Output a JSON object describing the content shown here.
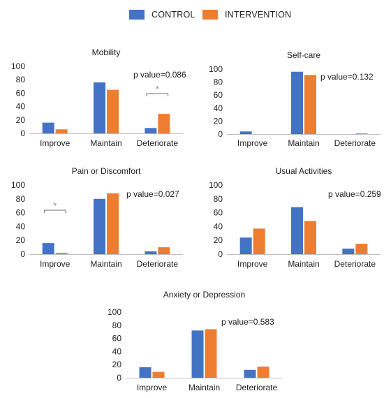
{
  "legend": {
    "control": {
      "label": "CONTROL",
      "color": "#4472C4"
    },
    "intervention": {
      "label": "INTERVENTION",
      "color": "#ED7D31"
    }
  },
  "chart_data": [
    {
      "type": "bar",
      "title": "Mobility",
      "categories": [
        "Improve",
        "Maintain",
        "Deteriorate"
      ],
      "series": [
        {
          "name": "CONTROL",
          "values": [
            16,
            76,
            8
          ]
        },
        {
          "name": "INTERVENTION",
          "values": [
            6,
            65,
            29
          ]
        }
      ],
      "ylim": [
        0,
        100
      ],
      "yticks": [
        0,
        20,
        40,
        60,
        80,
        100
      ],
      "annotation": "p value=0.086",
      "significance_marker": {
        "category_index": 2,
        "symbol": "*"
      }
    },
    {
      "type": "bar",
      "title": "Self-care",
      "categories": [
        "Improve",
        "Maintain",
        "Deteriorate"
      ],
      "series": [
        {
          "name": "CONTROL",
          "values": [
            4,
            96,
            0
          ]
        },
        {
          "name": "INTERVENTION",
          "values": [
            0,
            91,
            1
          ]
        }
      ],
      "ylim": [
        0,
        100
      ],
      "yticks": [
        0,
        20,
        40,
        60,
        80,
        100
      ],
      "annotation": "p value=0.132"
    },
    {
      "type": "bar",
      "title": "Pain or Discomfort",
      "categories": [
        "Improve",
        "Maintain",
        "Deteriorate"
      ],
      "series": [
        {
          "name": "CONTROL",
          "values": [
            16,
            80,
            4
          ]
        },
        {
          "name": "INTERVENTION",
          "values": [
            2,
            88,
            10
          ]
        }
      ],
      "ylim": [
        0,
        100
      ],
      "yticks": [
        0,
        20,
        40,
        60,
        80,
        100
      ],
      "annotation": "p value=0.027",
      "significance_marker": {
        "category_index": 0,
        "symbol": "*"
      }
    },
    {
      "type": "bar",
      "title": "Usual Activities",
      "categories": [
        "Improve",
        "Maintain",
        "Deteriorate"
      ],
      "series": [
        {
          "name": "CONTROL",
          "values": [
            24,
            68,
            8
          ]
        },
        {
          "name": "INTERVENTION",
          "values": [
            37,
            48,
            15
          ]
        }
      ],
      "ylim": [
        0,
        100
      ],
      "yticks": [
        0,
        20,
        40,
        60,
        80,
        100
      ],
      "annotation": "p value=0.259"
    },
    {
      "type": "bar",
      "title": "Anxiety or Depression",
      "categories": [
        "Improve",
        "Maintain",
        "Deteriorate"
      ],
      "series": [
        {
          "name": "CONTROL",
          "values": [
            16,
            72,
            12
          ]
        },
        {
          "name": "INTERVENTION",
          "values": [
            9,
            74,
            17
          ]
        }
      ],
      "ylim": [
        0,
        100
      ],
      "yticks": [
        0,
        20,
        40,
        60,
        80,
        100
      ],
      "annotation": "p value=0.583"
    }
  ]
}
